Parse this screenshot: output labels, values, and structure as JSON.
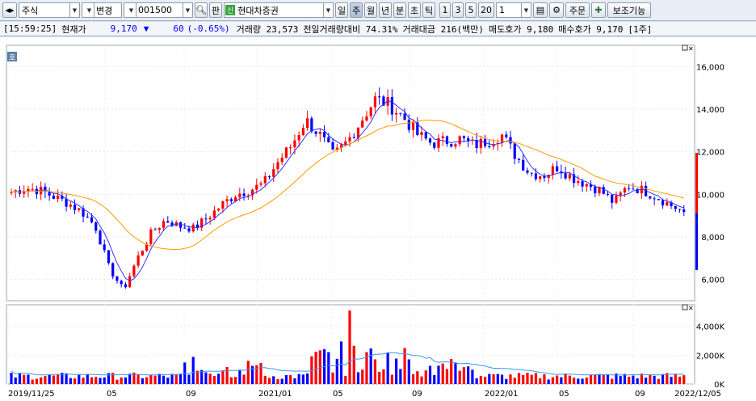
{
  "toolbar": {
    "market_label": "주식",
    "change_label": "변경",
    "code_value": "001500",
    "pan_label": "판",
    "broker_badge": "신",
    "company_name": "현대차증권",
    "period_buttons": [
      "일",
      "주",
      "월",
      "년",
      "분",
      "초",
      "틱"
    ],
    "selected_period": "주",
    "num_buttons": [
      "1",
      "3",
      "5",
      "20"
    ],
    "count_value": "1",
    "order_label": "주문",
    "aux_label": "보조기능"
  },
  "quote": {
    "time": "[15:59:25]",
    "current_label": "현재가",
    "price": "9,170",
    "arrow": "▼",
    "change": "60",
    "change_pct": "(-0.65%)",
    "volume_text": "거래량 23,573",
    "prev_ratio_text": "전일거래량대비 74.31%",
    "amount_text": "거래대금 216(백만)",
    "ask_text": "매도호가 9,180",
    "bid_text": "매수호가 9,170",
    "unit_text": "[1주]"
  },
  "chart_data": [
    {
      "type": "candlestick",
      "y_ticks": [
        "16,000",
        "14,000",
        "12,000",
        "10,000",
        "8,000",
        "6,000"
      ],
      "ylim": [
        5000,
        17000
      ],
      "x_ticks": [
        "2019/11/25",
        "05",
        "09",
        "2021/01",
        "05",
        "09",
        "2022/01",
        "05",
        "09",
        "2022/12/05"
      ],
      "approx_close_path": [
        10100,
        10300,
        10200,
        9900,
        9600,
        9200,
        8500,
        6500,
        5500,
        7000,
        8200,
        8800,
        8500,
        8400,
        8900,
        9500,
        10000,
        10200,
        10500,
        11500,
        12300,
        13500,
        12800,
        11800,
        12500,
        13500,
        14500,
        14200,
        13600,
        12800,
        12400,
        12500,
        12600,
        12300,
        12500,
        12800,
        11800,
        11000,
        10900,
        11300,
        10800,
        10500,
        10200,
        9600,
        10400,
        10200,
        9900,
        9500,
        9170
      ],
      "series": [
        {
          "name": "price",
          "color": "#ff0000"
        },
        {
          "name": "ma-short",
          "color": "#3333ff"
        },
        {
          "name": "ma-long",
          "color": "#ff9900"
        }
      ]
    },
    {
      "type": "bar",
      "y_ticks": [
        "4,000K",
        "2,000K",
        "0K"
      ],
      "ylim": [
        0,
        5500
      ],
      "peak_value": 5100,
      "series": [
        {
          "name": "volume",
          "color": "#ff0000"
        },
        {
          "name": "volume-ma",
          "color": "#3399ff"
        }
      ]
    }
  ],
  "colors": {
    "up": "#ff0000",
    "down": "#0000ff",
    "ma_short": "#3333ff",
    "ma_long": "#ff9900",
    "vol_ma": "#3399ff"
  },
  "icons": {
    "chart_badge": "호"
  }
}
